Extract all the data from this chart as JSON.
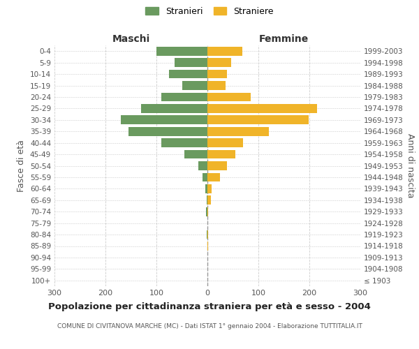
{
  "age_groups": [
    "100+",
    "95-99",
    "90-94",
    "85-89",
    "80-84",
    "75-79",
    "70-74",
    "65-69",
    "60-64",
    "55-59",
    "50-54",
    "45-49",
    "40-44",
    "35-39",
    "30-34",
    "25-29",
    "20-24",
    "15-19",
    "10-14",
    "5-9",
    "0-4"
  ],
  "birth_years": [
    "≤ 1903",
    "1904-1908",
    "1909-1913",
    "1914-1918",
    "1919-1923",
    "1924-1928",
    "1929-1933",
    "1934-1938",
    "1939-1943",
    "1944-1948",
    "1949-1953",
    "1954-1958",
    "1959-1963",
    "1964-1968",
    "1969-1973",
    "1974-1978",
    "1979-1983",
    "1984-1988",
    "1989-1993",
    "1994-1998",
    "1999-2003"
  ],
  "males": [
    0,
    0,
    0,
    0,
    1,
    0,
    3,
    2,
    4,
    10,
    18,
    45,
    90,
    155,
    170,
    130,
    90,
    50,
    75,
    65,
    100
  ],
  "females": [
    0,
    0,
    0,
    1,
    1,
    0,
    2,
    7,
    8,
    25,
    38,
    55,
    70,
    120,
    198,
    215,
    85,
    35,
    38,
    47,
    68
  ],
  "male_color": "#6a9a5f",
  "female_color": "#f0b429",
  "male_label": "Stranieri",
  "female_label": "Straniere",
  "title": "Popolazione per cittadinanza straniera per età e sesso - 2004",
  "subtitle": "COMUNE DI CIVITANOVA MARCHE (MC) - Dati ISTAT 1° gennaio 2004 - Elaborazione TUTTITALIA.IT",
  "xlabel_left": "Maschi",
  "xlabel_right": "Femmine",
  "ylabel_left": "Fasce di età",
  "ylabel_right": "Anni di nascita",
  "xlim": 300,
  "background_color": "#ffffff",
  "grid_color": "#cccccc"
}
